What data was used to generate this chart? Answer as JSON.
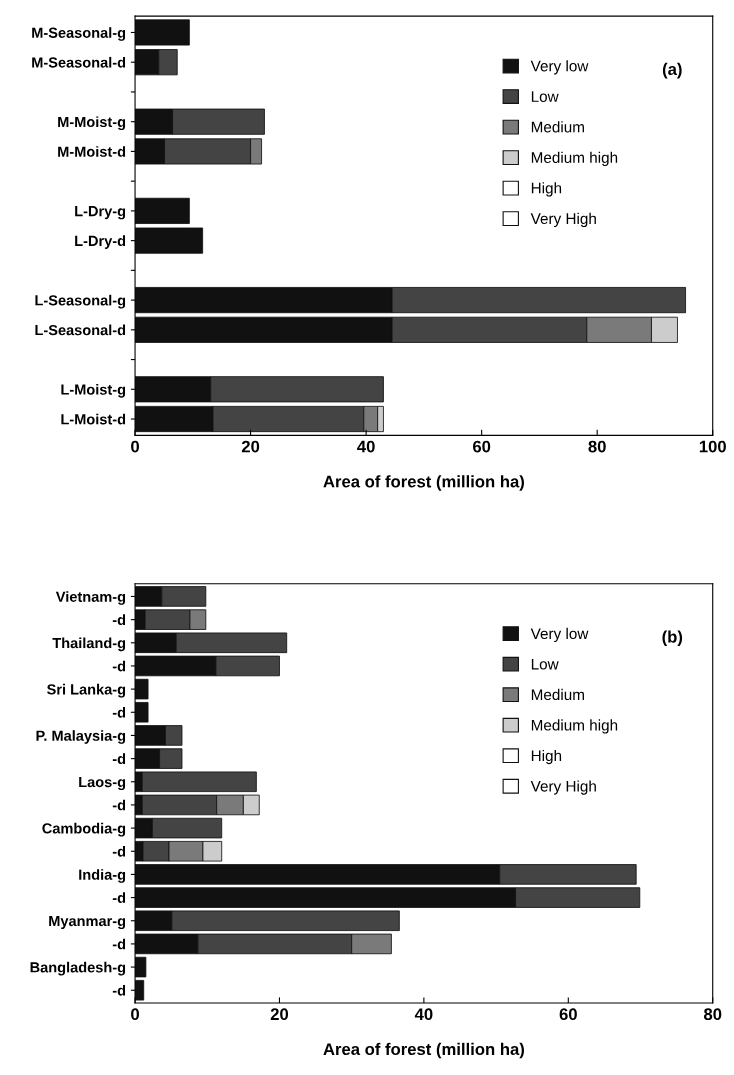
{
  "chart_data": [
    {
      "type": "bar",
      "orientation": "horizontal",
      "stacked": true,
      "xlabel": "Area of forest (million ha)",
      "categories": [
        "M-Seasonal-g",
        "M-Seasonal-d",
        null,
        "M-Moist-g",
        "M-Moist-d",
        null,
        "L-Dry-g",
        "L-Dry-d",
        null,
        "L-Seasonal-g",
        "L-Seasonal-d",
        null,
        "L-Moist-g",
        "L-Moist-d"
      ],
      "series": [
        {
          "name": "Very low",
          "color": "#111111",
          "values": [
            9.4,
            4.1,
            null,
            6.5,
            5.1,
            null,
            9.4,
            11.7,
            null,
            44.5,
            44.5,
            null,
            13.1,
            13.5
          ]
        },
        {
          "name": "Low",
          "color": "#444444",
          "values": [
            null,
            3.2,
            null,
            15.9,
            14.9,
            null,
            null,
            null,
            null,
            50.8,
            33.7,
            null,
            29.9,
            26.1
          ]
        },
        {
          "name": "Medium",
          "color": "#7a7a7a",
          "values": [
            null,
            null,
            null,
            null,
            1.9,
            null,
            null,
            null,
            null,
            null,
            11.2,
            null,
            null,
            2.4
          ]
        },
        {
          "name": "Medium high",
          "color": "#cccccc",
          "values": [
            null,
            null,
            null,
            null,
            null,
            null,
            null,
            null,
            null,
            null,
            4.5,
            null,
            null,
            1.0
          ]
        },
        {
          "name": "High",
          "color": "#ffffff",
          "values": [
            null,
            null,
            null,
            null,
            null,
            null,
            null,
            null,
            null,
            null,
            null,
            null,
            null,
            null
          ]
        },
        {
          "name": "Very High",
          "color": "#ffffff",
          "values": [
            null,
            null,
            null,
            null,
            null,
            null,
            null,
            null,
            null,
            null,
            null,
            null,
            null,
            null
          ]
        }
      ],
      "xlim": [
        0,
        100
      ],
      "xticks": [
        0,
        20,
        40,
        60,
        80,
        100
      ],
      "legend": "top right",
      "grid": false,
      "annotations": [
        "(a)"
      ]
    },
    {
      "type": "bar",
      "orientation": "horizontal",
      "stacked": true,
      "xlabel": "Area of forest (million ha)",
      "categories": [
        "Vietnam-g",
        "-d",
        "Thailand-g",
        "-d",
        "Sri Lanka-g",
        "-d",
        "P. Malaysia-g",
        "-d",
        "Laos-g",
        "-d",
        "Cambodia-g",
        "-d",
        "India-g",
        "-d",
        "Myanmar-g",
        "-d",
        "Bangladesh-g",
        "-d"
      ],
      "series": [
        {
          "name": "Very low",
          "color": "#111111",
          "values": [
            3.7,
            1.4,
            5.7,
            11.2,
            1.8,
            1.8,
            4.2,
            3.4,
            1.0,
            1.0,
            2.4,
            1.1,
            50.5,
            52.7,
            5.1,
            8.7,
            1.5,
            1.2
          ]
        },
        {
          "name": "Low",
          "color": "#444444",
          "values": [
            6.1,
            6.2,
            15.3,
            8.8,
            null,
            null,
            2.3,
            3.1,
            15.8,
            10.3,
            9.6,
            3.6,
            18.9,
            17.2,
            31.5,
            21.3,
            null,
            null
          ]
        },
        {
          "name": "Medium",
          "color": "#7a7a7a",
          "values": [
            null,
            2.2,
            null,
            null,
            null,
            null,
            null,
            null,
            null,
            3.7,
            null,
            4.7,
            null,
            null,
            null,
            5.5,
            null,
            null
          ]
        },
        {
          "name": "Medium high",
          "color": "#cccccc",
          "values": [
            null,
            null,
            null,
            null,
            null,
            null,
            null,
            null,
            null,
            2.2,
            null,
            2.6,
            null,
            null,
            null,
            null,
            null,
            null
          ]
        },
        {
          "name": "High",
          "color": "#ffffff",
          "values": [
            null,
            null,
            null,
            null,
            null,
            null,
            null,
            null,
            null,
            null,
            null,
            null,
            null,
            null,
            null,
            null,
            null,
            null
          ]
        },
        {
          "name": "Very High",
          "color": "#ffffff",
          "values": [
            null,
            null,
            null,
            null,
            null,
            null,
            null,
            null,
            null,
            null,
            null,
            null,
            null,
            null,
            null,
            null,
            null,
            null
          ]
        }
      ],
      "xlim": [
        0,
        80
      ],
      "xticks": [
        0,
        20,
        40,
        60,
        80
      ],
      "legend": "top right",
      "grid": false,
      "annotations": [
        "(b)"
      ]
    }
  ]
}
